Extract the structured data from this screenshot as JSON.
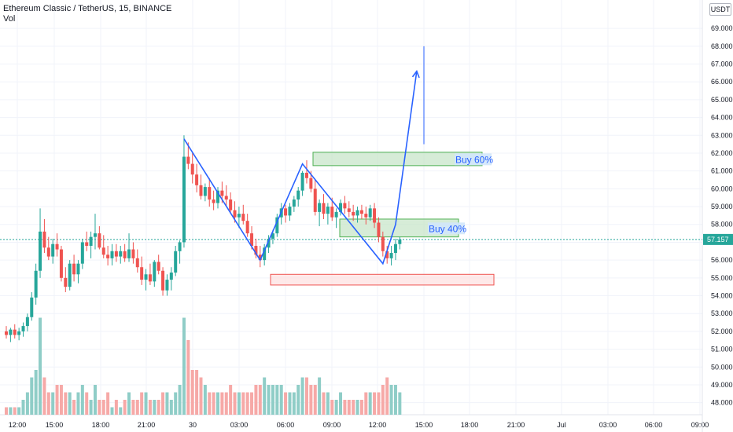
{
  "header": {
    "title": "Ethereum Classic / TetherUS, 15, BINANCE",
    "volume_label": "Vol"
  },
  "unit_button": "USDT",
  "last_price": "57.157",
  "colors": {
    "up": "#26a69a",
    "down": "#ef5350",
    "vol_up": "#8fcdc7",
    "vol_down": "#f6a9a7",
    "pattern_line": "#2962ff",
    "buy_zone_fill": "#c8e6c9",
    "buy_zone_border": "#4caf50",
    "stop_zone_fill": "#fde2e2",
    "stop_zone_border": "#ef5350",
    "last_price_line": "#26a69a"
  },
  "annotations": {
    "buy_60": "Buy 60%",
    "buy_40": "Buy 40%"
  },
  "chart_data": {
    "type": "candlestick",
    "x_ticks": [
      "12:00",
      "15:00",
      "18:00",
      "21:00",
      "30",
      "03:00",
      "06:00",
      "09:00",
      "12:00",
      "15:00",
      "18:00",
      "21:00",
      "Jul",
      "03:00",
      "06:00",
      "09:00"
    ],
    "y_ticks": [
      "48.000",
      "49.000",
      "50.000",
      "51.000",
      "52.000",
      "53.000",
      "54.000",
      "55.000",
      "56.000",
      "57.000",
      "58.000",
      "59.000",
      "60.000",
      "61.000",
      "62.000",
      "63.000",
      "64.000",
      "65.000",
      "66.000",
      "67.000",
      "68.000",
      "69.000"
    ],
    "ylim": [
      47.5,
      69.8
    ],
    "candles": [
      [
        52.0,
        52.3,
        51.6,
        51.8,
        1
      ],
      [
        51.8,
        52.2,
        51.4,
        52.1,
        1
      ],
      [
        52.1,
        52.4,
        51.6,
        51.8,
        1
      ],
      [
        51.8,
        52.2,
        51.5,
        52.0,
        1
      ],
      [
        52.0,
        52.5,
        51.7,
        52.3,
        2
      ],
      [
        52.3,
        53.0,
        52.0,
        52.8,
        3
      ],
      [
        52.8,
        54.2,
        52.6,
        53.9,
        5
      ],
      [
        53.9,
        55.8,
        53.5,
        55.4,
        6
      ],
      [
        55.4,
        58.9,
        55.0,
        57.6,
        13
      ],
      [
        57.6,
        58.3,
        56.4,
        56.7,
        5
      ],
      [
        56.7,
        57.3,
        56.0,
        56.2,
        3
      ],
      [
        56.2,
        57.2,
        55.8,
        56.9,
        3
      ],
      [
        56.9,
        57.5,
        56.2,
        56.6,
        4
      ],
      [
        56.6,
        56.8,
        54.8,
        55.0,
        4
      ],
      [
        55.0,
        55.6,
        54.2,
        54.5,
        3
      ],
      [
        54.5,
        56.0,
        54.3,
        55.8,
        3
      ],
      [
        55.8,
        56.3,
        54.8,
        55.2,
        2
      ],
      [
        55.2,
        56.0,
        54.7,
        55.8,
        3
      ],
      [
        55.8,
        57.2,
        55.5,
        57.0,
        4
      ],
      [
        57.0,
        57.6,
        56.5,
        56.8,
        3
      ],
      [
        56.8,
        57.6,
        56.1,
        57.3,
        2
      ],
      [
        57.3,
        58.6,
        56.6,
        57.5,
        4
      ],
      [
        57.5,
        57.9,
        56.6,
        56.7,
        2
      ],
      [
        56.7,
        57.4,
        56.1,
        56.3,
        2
      ],
      [
        56.3,
        56.8,
        55.7,
        56.1,
        3
      ],
      [
        56.1,
        56.9,
        55.7,
        56.5,
        1
      ],
      [
        56.5,
        56.9,
        55.9,
        56.2,
        2
      ],
      [
        56.2,
        56.8,
        55.8,
        56.5,
        1
      ],
      [
        56.5,
        56.9,
        55.9,
        56.1,
        2
      ],
      [
        56.1,
        57.5,
        55.9,
        56.6,
        3
      ],
      [
        56.6,
        57.0,
        55.8,
        56.1,
        2
      ],
      [
        56.1,
        56.6,
        55.3,
        55.6,
        2
      ],
      [
        55.6,
        56.2,
        54.6,
        54.9,
        3
      ],
      [
        54.9,
        55.5,
        54.3,
        55.2,
        3
      ],
      [
        55.2,
        55.8,
        54.6,
        54.8,
        2
      ],
      [
        54.8,
        56.0,
        54.5,
        55.9,
        2
      ],
      [
        55.9,
        56.3,
        55.2,
        55.4,
        2
      ],
      [
        55.4,
        55.6,
        54.0,
        54.3,
        3
      ],
      [
        54.3,
        55.2,
        54.0,
        54.9,
        3
      ],
      [
        54.9,
        55.6,
        54.3,
        55.3,
        2
      ],
      [
        55.3,
        56.8,
        55.1,
        56.5,
        3
      ],
      [
        56.5,
        57.1,
        55.8,
        57.0,
        4
      ],
      [
        57.0,
        63.0,
        56.7,
        61.8,
        13
      ],
      [
        61.8,
        62.6,
        61.1,
        61.4,
        10
      ],
      [
        61.4,
        62.0,
        60.3,
        60.8,
        6
      ],
      [
        60.8,
        61.4,
        59.8,
        60.2,
        6
      ],
      [
        60.2,
        60.8,
        59.4,
        59.6,
        5
      ],
      [
        59.6,
        60.3,
        59.3,
        60.1,
        4
      ],
      [
        60.1,
        60.6,
        59.0,
        59.4,
        3
      ],
      [
        59.4,
        59.9,
        58.8,
        59.2,
        3
      ],
      [
        59.2,
        60.1,
        58.9,
        59.9,
        3
      ],
      [
        59.9,
        60.4,
        59.2,
        59.6,
        3
      ],
      [
        59.6,
        60.2,
        59.0,
        59.4,
        3
      ],
      [
        59.4,
        59.8,
        58.6,
        58.8,
        4
      ],
      [
        58.8,
        59.3,
        58.1,
        58.4,
        3
      ],
      [
        58.4,
        59.0,
        57.8,
        58.6,
        3
      ],
      [
        58.6,
        59.1,
        58.0,
        58.2,
        3
      ],
      [
        58.2,
        58.6,
        57.3,
        57.5,
        3
      ],
      [
        57.5,
        57.9,
        56.6,
        56.8,
        3
      ],
      [
        56.8,
        57.2,
        56.1,
        56.3,
        4
      ],
      [
        56.3,
        56.8,
        55.6,
        56.0,
        4
      ],
      [
        56.0,
        56.9,
        55.7,
        56.7,
        5
      ],
      [
        56.7,
        57.4,
        56.4,
        57.2,
        4
      ],
      [
        57.2,
        57.7,
        56.9,
        57.5,
        4
      ],
      [
        57.5,
        58.6,
        57.3,
        58.4,
        4
      ],
      [
        58.4,
        59.2,
        58.0,
        58.9,
        4
      ],
      [
        58.9,
        59.1,
        58.1,
        58.5,
        3
      ],
      [
        58.5,
        59.2,
        58.2,
        59.0,
        3
      ],
      [
        59.0,
        59.6,
        58.7,
        59.4,
        3
      ],
      [
        59.4,
        60.1,
        59.0,
        59.9,
        4
      ],
      [
        59.9,
        61.0,
        59.6,
        60.9,
        5
      ],
      [
        60.9,
        61.6,
        60.3,
        60.6,
        5
      ],
      [
        60.6,
        61.0,
        59.8,
        60.0,
        4
      ],
      [
        60.0,
        60.5,
        58.5,
        58.7,
        4
      ],
      [
        58.7,
        59.4,
        57.9,
        59.2,
        5
      ],
      [
        59.2,
        59.7,
        58.3,
        58.6,
        3
      ],
      [
        58.6,
        59.2,
        58.0,
        59.0,
        3
      ],
      [
        59.0,
        59.5,
        58.2,
        58.4,
        2
      ],
      [
        58.4,
        58.9,
        57.8,
        58.7,
        2
      ],
      [
        58.7,
        59.4,
        58.5,
        59.2,
        3
      ],
      [
        59.2,
        59.6,
        58.6,
        58.9,
        2
      ],
      [
        58.9,
        59.3,
        58.4,
        58.7,
        2
      ],
      [
        58.7,
        59.1,
        58.2,
        58.5,
        2
      ],
      [
        58.5,
        59.0,
        58.1,
        58.8,
        2
      ],
      [
        58.8,
        59.1,
        58.3,
        58.6,
        2
      ],
      [
        58.6,
        59.0,
        58.0,
        58.4,
        3
      ],
      [
        58.4,
        59.1,
        58.2,
        58.9,
        3
      ],
      [
        58.9,
        59.2,
        57.8,
        58.1,
        3
      ],
      [
        58.1,
        58.4,
        57.0,
        57.3,
        3
      ],
      [
        57.3,
        57.6,
        56.2,
        56.5,
        4
      ],
      [
        56.5,
        56.8,
        55.8,
        56.1,
        5
      ],
      [
        56.1,
        56.8,
        55.7,
        56.4,
        4
      ],
      [
        56.4,
        57.2,
        56.0,
        56.9,
        4
      ],
      [
        56.9,
        57.3,
        56.6,
        57.16,
        3
      ]
    ],
    "patterns": {
      "w_line_points": [
        [
          42,
          62.8
        ],
        [
          60,
          56.0
        ],
        [
          70,
          61.4
        ],
        [
          89,
          55.8
        ],
        [
          92,
          58.0
        ],
        [
          97,
          66.6
        ]
      ],
      "spike_value": 68.0
    },
    "zones": [
      {
        "label": "Buy 60%",
        "low": 61.3,
        "high": 62.05
      },
      {
        "label": "Buy 40%",
        "low": 57.3,
        "high": 58.3
      },
      {
        "label": "",
        "low": 54.6,
        "high": 55.2
      }
    ]
  }
}
